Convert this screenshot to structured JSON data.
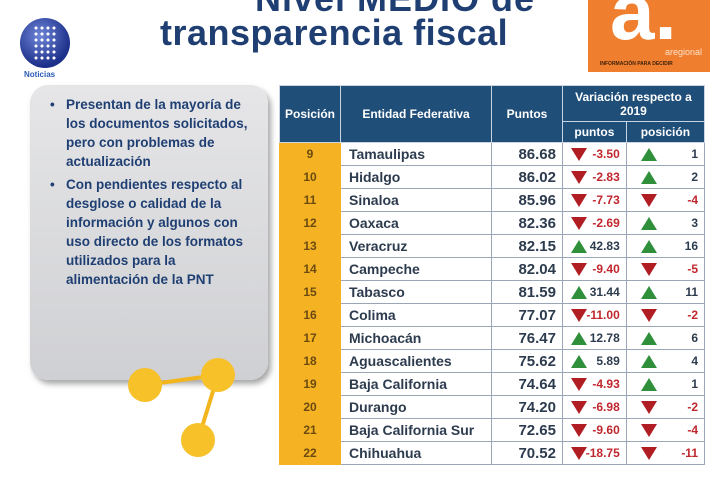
{
  "title": {
    "line1": "Nivel MEDIO de",
    "line2": "transparencia fiscal"
  },
  "logos": {
    "left": "Noticias",
    "right_mark": "a.",
    "right_brand": "aregional",
    "right_tagline": "INFORMACIÓN PARA DECIDIR"
  },
  "bullets": [
    "Presentan de la mayoría de los documentos solicitados, pero con problemas de actualización",
    "Con pendientes respecto al desglose o calidad de la información y algunos con uso directo de los formatos utilizados para la alimentación de la PNT"
  ],
  "table": {
    "headers": {
      "pos": "Posición",
      "entity": "Entidad Federativa",
      "points": "Puntos",
      "variation": "Variación respecto a 2019",
      "var_points": "puntos",
      "var_pos": "posición"
    },
    "rows": [
      {
        "pos": "9",
        "name": "Tamaulipas",
        "pts": "86.68",
        "vp": "-3.50",
        "vpos": "1",
        "vpd": "down",
        "vposd": "up"
      },
      {
        "pos": "10",
        "name": "Hidalgo",
        "pts": "86.02",
        "vp": "-2.83",
        "vpos": "2",
        "vpd": "down",
        "vposd": "up"
      },
      {
        "pos": "11",
        "name": "Sinaloa",
        "pts": "85.96",
        "vp": "-7.73",
        "vpos": "-4",
        "vpd": "down",
        "vposd": "down"
      },
      {
        "pos": "12",
        "name": "Oaxaca",
        "pts": "82.36",
        "vp": "-2.69",
        "vpos": "3",
        "vpd": "down",
        "vposd": "up"
      },
      {
        "pos": "13",
        "name": "Veracruz",
        "pts": "82.15",
        "vp": "42.83",
        "vpos": "16",
        "vpd": "up",
        "vposd": "up"
      },
      {
        "pos": "14",
        "name": "Campeche",
        "pts": "82.04",
        "vp": "-9.40",
        "vpos": "-5",
        "vpd": "down",
        "vposd": "down"
      },
      {
        "pos": "15",
        "name": "Tabasco",
        "pts": "81.59",
        "vp": "31.44",
        "vpos": "11",
        "vpd": "up",
        "vposd": "up"
      },
      {
        "pos": "16",
        "name": "Colima",
        "pts": "77.07",
        "vp": "-11.00",
        "vpos": "-2",
        "vpd": "down",
        "vposd": "down"
      },
      {
        "pos": "17",
        "name": "Michoacán",
        "pts": "76.47",
        "vp": "12.78",
        "vpos": "6",
        "vpd": "up",
        "vposd": "up"
      },
      {
        "pos": "18",
        "name": "Aguascalientes",
        "pts": "75.62",
        "vp": "5.89",
        "vpos": "4",
        "vpd": "up",
        "vposd": "up"
      },
      {
        "pos": "19",
        "name": "Baja California",
        "pts": "74.64",
        "vp": "-4.93",
        "vpos": "1",
        "vpd": "down",
        "vposd": "up"
      },
      {
        "pos": "20",
        "name": "Durango",
        "pts": "74.20",
        "vp": "-6.98",
        "vpos": "-2",
        "vpd": "down",
        "vposd": "down"
      },
      {
        "pos": "21",
        "name": "Baja California Sur",
        "pts": "72.65",
        "vp": "-9.60",
        "vpos": "-4",
        "vpd": "down",
        "vposd": "down"
      },
      {
        "pos": "22",
        "name": "Chihuahua",
        "pts": "70.52",
        "vp": "-18.75",
        "vpos": "-11",
        "vpd": "down",
        "vposd": "down"
      }
    ]
  }
}
